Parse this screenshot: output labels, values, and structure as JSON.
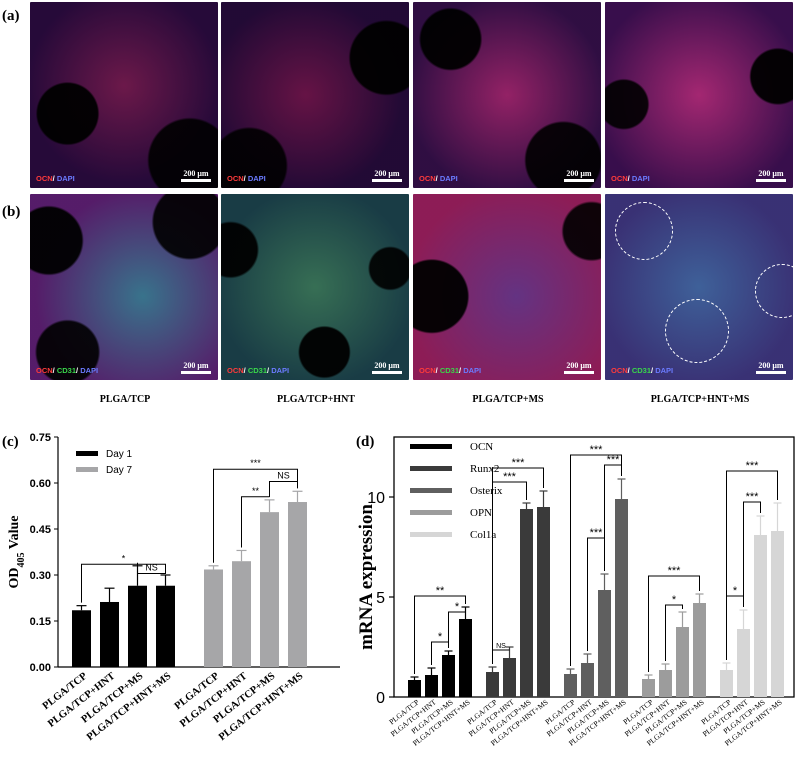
{
  "panel_labels": {
    "a": "(a)",
    "b": "(b)",
    "c": "(c)",
    "d": "(d)"
  },
  "micrographs": {
    "row_a_stain": [
      "OCN",
      "/ ",
      "DAPI"
    ],
    "row_b_stain": [
      "OCN",
      "/ ",
      "CD31",
      "/ ",
      "DAPI"
    ],
    "scale_bar": "200 μm"
  },
  "groups": [
    "PLGA/TCP",
    "PLGA/TCP+HNT",
    "PLGA/TCP+MS",
    "PLGA/TCP+HNT+MS"
  ],
  "colors": {
    "day1": "#000000",
    "day7": "#a6a6a8",
    "ocn": "#000000",
    "runx2": "#3a3a3a",
    "osterix": "#5f5f5f",
    "opn": "#9c9c9c",
    "col1a": "#d6d6d6"
  },
  "chart_data": [
    {
      "panel": "(c)",
      "type": "bar",
      "ylabel": "OD405 Value",
      "ylim": [
        0,
        0.75
      ],
      "yticks": [
        "0.00",
        "0.15",
        "0.30",
        "0.45",
        "0.60",
        "0.75"
      ],
      "categories": [
        "PLGA/TCP",
        "PLGA/TCP+HNT",
        "PLGA/TCP+MS",
        "PLGA/TCP+HNT+MS"
      ],
      "series": [
        {
          "name": "Day 1",
          "values": [
            0.185,
            0.212,
            0.265,
            0.265
          ],
          "errors": [
            0.015,
            0.045,
            0.065,
            0.035
          ]
        },
        {
          "name": "Day 7",
          "values": [
            0.318,
            0.345,
            0.505,
            0.538
          ],
          "errors": [
            0.012,
            0.035,
            0.04,
            0.035
          ]
        }
      ],
      "legend_position": "top-left",
      "significance": [
        {
          "label": "*",
          "series": "Day 1",
          "from": 0,
          "to": 3
        },
        {
          "label": "NS",
          "series": "Day 1",
          "from": 2,
          "to": 3
        },
        {
          "label": "***",
          "series": "Day 7",
          "from": 0,
          "to": 3
        },
        {
          "label": "NS",
          "series": "Day 7",
          "from": 2,
          "to": 3
        },
        {
          "label": "**",
          "series": "Day 7",
          "from": 1,
          "to": 2
        }
      ]
    },
    {
      "panel": "(d)",
      "type": "bar",
      "ylabel": "mRNA expression",
      "ylim": [
        0,
        13
      ],
      "yticks": [
        "0",
        "5",
        "10"
      ],
      "categories": [
        "PLGA/TCP",
        "PLGA/TCP+HNT",
        "PLGA/TCP+MS",
        "PLGA/TCP+HNT+MS"
      ],
      "series": [
        {
          "name": "OCN",
          "values": [
            0.85,
            1.1,
            2.1,
            3.9
          ],
          "errors": [
            0.15,
            0.35,
            0.2,
            0.6
          ]
        },
        {
          "name": "Runx2",
          "values": [
            1.25,
            1.95,
            9.4,
            9.5
          ],
          "errors": [
            0.25,
            0.55,
            0.3,
            0.8
          ]
        },
        {
          "name": "Osterix",
          "values": [
            1.15,
            1.7,
            5.35,
            9.9
          ],
          "errors": [
            0.25,
            0.45,
            0.8,
            1.0
          ]
        },
        {
          "name": "OPN",
          "values": [
            0.9,
            1.35,
            3.5,
            4.7
          ],
          "errors": [
            0.2,
            0.3,
            0.75,
            0.45
          ]
        },
        {
          "name": "Col1a",
          "values": [
            1.35,
            3.4,
            8.1,
            8.3
          ],
          "errors": [
            0.35,
            0.95,
            0.95,
            1.4
          ]
        }
      ],
      "legend_position": "top-left",
      "significance": [
        {
          "label": "**",
          "series": "OCN",
          "from": 0,
          "to": 3
        },
        {
          "label": "*",
          "series": "OCN",
          "from": 1,
          "to": 2
        },
        {
          "label": "*",
          "series": "OCN",
          "from": 2,
          "to": 3
        },
        {
          "label": "NS",
          "series": "Runx2",
          "from": 0,
          "to": 1
        },
        {
          "label": "***",
          "series": "Runx2",
          "from": 0,
          "to": 2
        },
        {
          "label": "***",
          "series": "Runx2",
          "from": 0,
          "to": 3
        },
        {
          "label": "***",
          "series": "Osterix",
          "from": 0,
          "to": 3
        },
        {
          "label": "***",
          "series": "Osterix",
          "from": 2,
          "to": 3
        },
        {
          "label": "***",
          "series": "Osterix",
          "from": 1,
          "to": 2
        },
        {
          "label": "***",
          "series": "OPN",
          "from": 0,
          "to": 3
        },
        {
          "label": "*",
          "series": "OPN",
          "from": 1,
          "to": 2
        },
        {
          "label": "***",
          "series": "Col1a",
          "from": 0,
          "to": 3
        },
        {
          "label": "***",
          "series": "Col1a",
          "from": 1,
          "to": 2
        },
        {
          "label": "*",
          "series": "Col1a",
          "from": 0,
          "to": 1
        }
      ]
    }
  ]
}
